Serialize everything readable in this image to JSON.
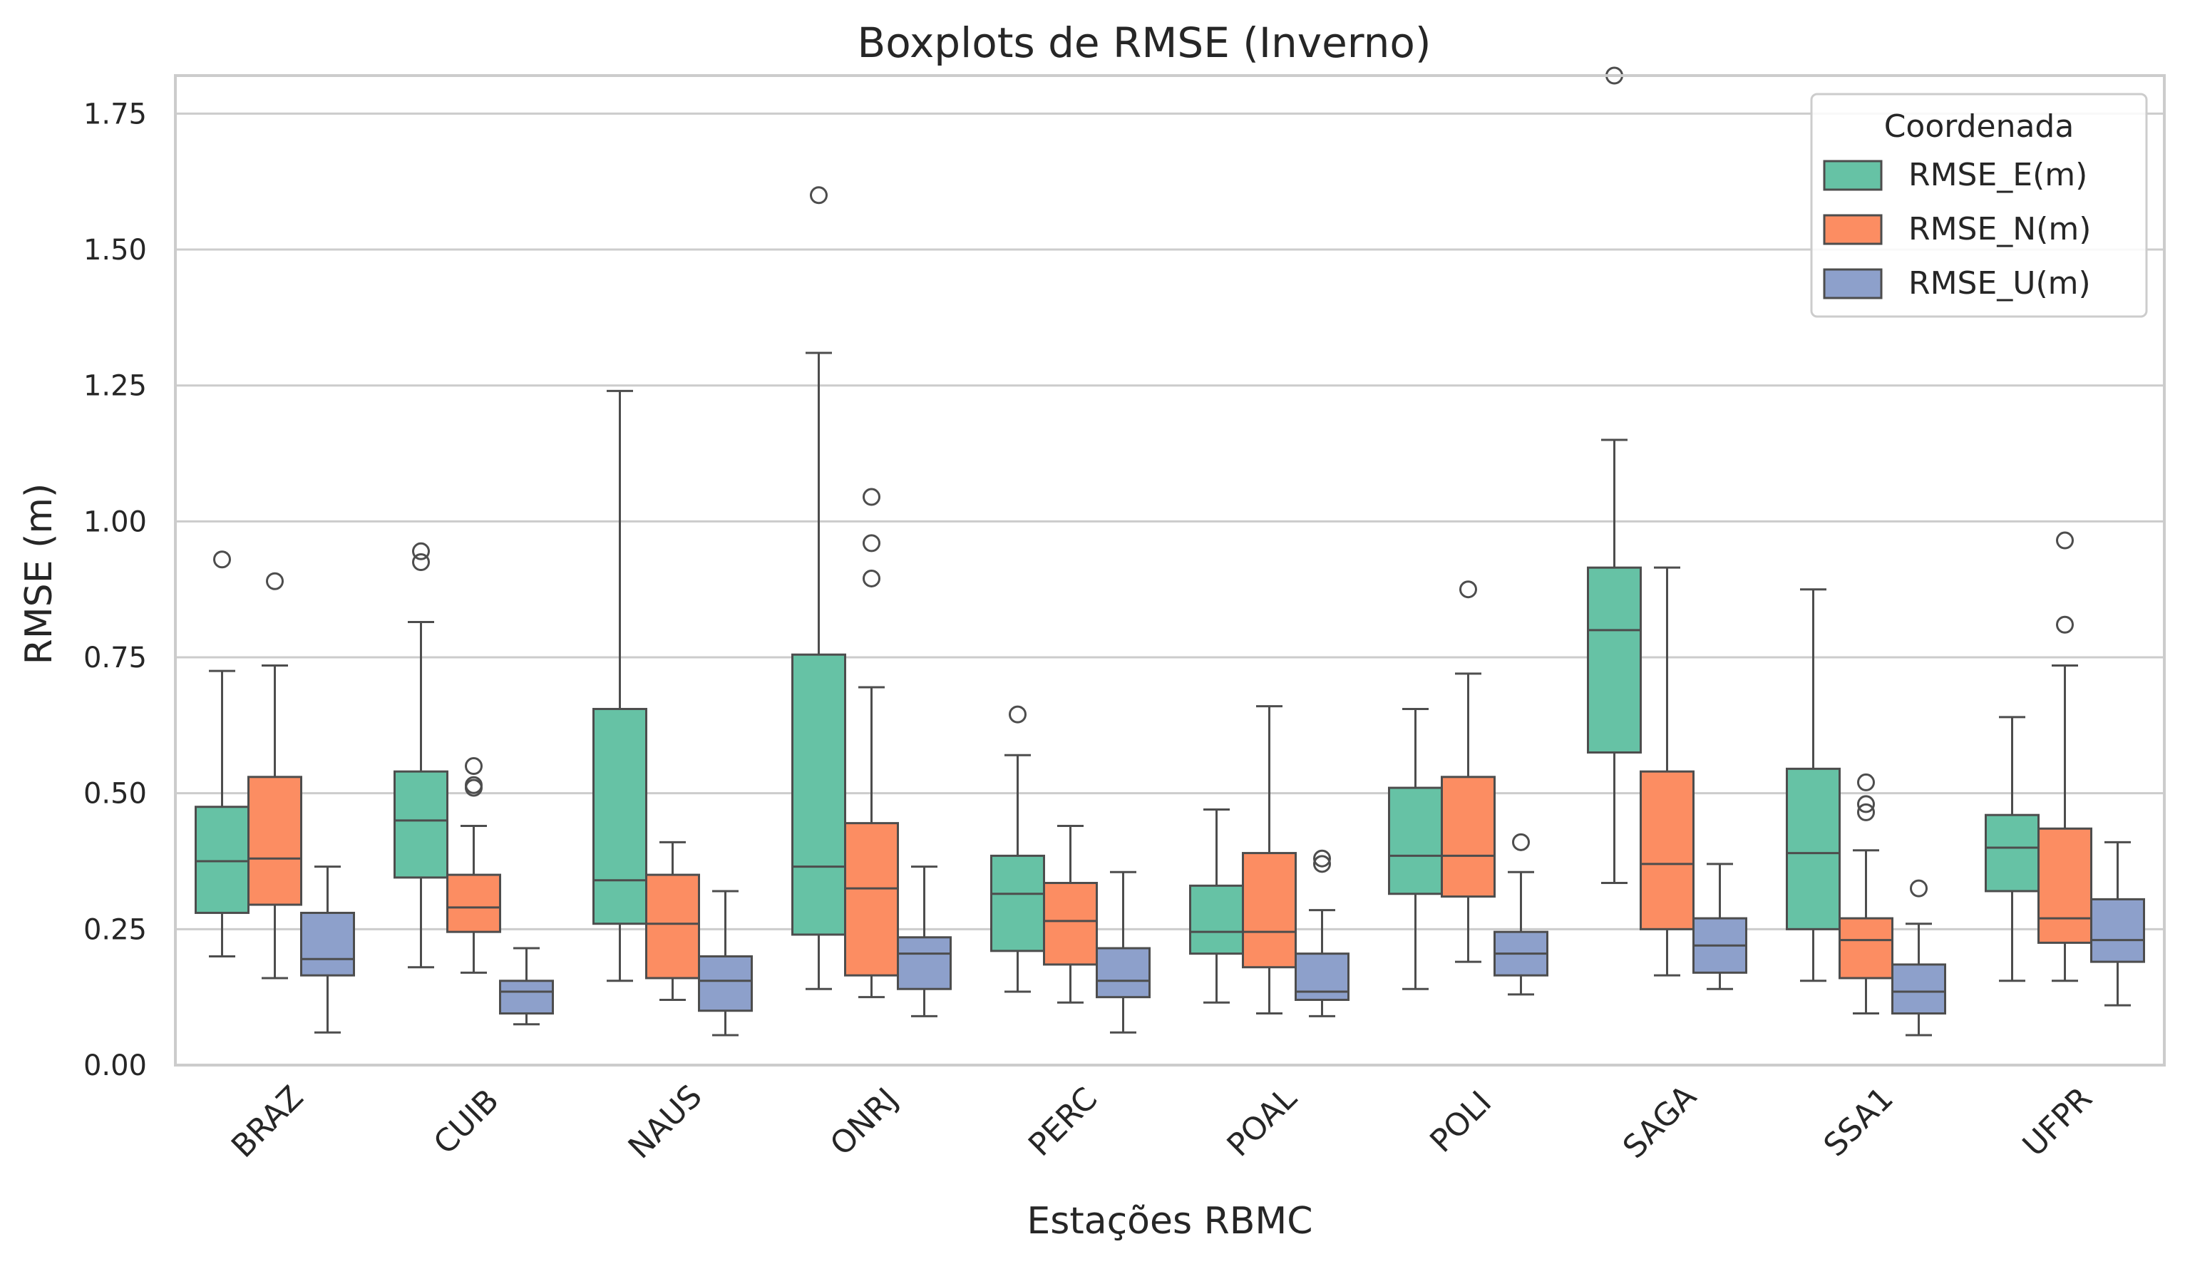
{
  "chart_data": {
    "type": "boxplot",
    "title": "Boxplots de RMSE (Inverno)",
    "xlabel": "Estações RBMC",
    "ylabel": "RMSE (m)",
    "ylim": [
      0,
      1.82
    ],
    "yticks": [
      0.0,
      0.25,
      0.5,
      0.75,
      1.0,
      1.25,
      1.5,
      1.75
    ],
    "ytick_labels": [
      "0.00",
      "0.25",
      "0.50",
      "0.75",
      "1.00",
      "1.25",
      "1.50",
      "1.75"
    ],
    "grid": true,
    "legend": {
      "title": "Coordenada",
      "position": "top-right"
    },
    "categories": [
      "BRAZ",
      "CUIB",
      "NAUS",
      "ONRJ",
      "PERC",
      "POAL",
      "POLI",
      "SAGA",
      "SSA1",
      "UFPR"
    ],
    "series": [
      {
        "name": "RMSE_E(m)",
        "color": "#66c2a5",
        "boxes": [
          {
            "whislo": 0.2,
            "q1": 0.28,
            "med": 0.375,
            "q3": 0.475,
            "whishi": 0.725,
            "fliers": [
              0.93
            ]
          },
          {
            "whislo": 0.18,
            "q1": 0.345,
            "med": 0.45,
            "q3": 0.54,
            "whishi": 0.815,
            "fliers": [
              0.925,
              0.945
            ]
          },
          {
            "whislo": 0.155,
            "q1": 0.26,
            "med": 0.34,
            "q3": 0.655,
            "whishi": 1.24,
            "fliers": []
          },
          {
            "whislo": 0.14,
            "q1": 0.24,
            "med": 0.365,
            "q3": 0.755,
            "whishi": 1.31,
            "fliers": [
              1.6
            ]
          },
          {
            "whislo": 0.135,
            "q1": 0.21,
            "med": 0.315,
            "q3": 0.385,
            "whishi": 0.57,
            "fliers": [
              0.645
            ]
          },
          {
            "whislo": 0.115,
            "q1": 0.205,
            "med": 0.245,
            "q3": 0.33,
            "whishi": 0.47,
            "fliers": []
          },
          {
            "whislo": 0.14,
            "q1": 0.315,
            "med": 0.385,
            "q3": 0.51,
            "whishi": 0.655,
            "fliers": []
          },
          {
            "whislo": 0.335,
            "q1": 0.575,
            "med": 0.8,
            "q3": 0.915,
            "whishi": 1.15,
            "fliers": [
              1.82
            ]
          },
          {
            "whislo": 0.155,
            "q1": 0.25,
            "med": 0.39,
            "q3": 0.545,
            "whishi": 0.875,
            "fliers": []
          },
          {
            "whislo": 0.155,
            "q1": 0.32,
            "med": 0.4,
            "q3": 0.46,
            "whishi": 0.64,
            "fliers": []
          }
        ]
      },
      {
        "name": "RMSE_N(m)",
        "color": "#fc8d62",
        "boxes": [
          {
            "whislo": 0.16,
            "q1": 0.295,
            "med": 0.38,
            "q3": 0.53,
            "whishi": 0.735,
            "fliers": [
              0.89
            ]
          },
          {
            "whislo": 0.17,
            "q1": 0.245,
            "med": 0.29,
            "q3": 0.35,
            "whishi": 0.44,
            "fliers": [
              0.51,
              0.515,
              0.55
            ]
          },
          {
            "whislo": 0.12,
            "q1": 0.16,
            "med": 0.26,
            "q3": 0.35,
            "whishi": 0.41,
            "fliers": []
          },
          {
            "whislo": 0.125,
            "q1": 0.165,
            "med": 0.325,
            "q3": 0.445,
            "whishi": 0.695,
            "fliers": [
              0.895,
              0.96,
              1.045
            ]
          },
          {
            "whislo": 0.115,
            "q1": 0.185,
            "med": 0.265,
            "q3": 0.335,
            "whishi": 0.44,
            "fliers": []
          },
          {
            "whislo": 0.095,
            "q1": 0.18,
            "med": 0.245,
            "q3": 0.39,
            "whishi": 0.66,
            "fliers": []
          },
          {
            "whislo": 0.19,
            "q1": 0.31,
            "med": 0.385,
            "q3": 0.53,
            "whishi": 0.72,
            "fliers": [
              0.875
            ]
          },
          {
            "whislo": 0.165,
            "q1": 0.25,
            "med": 0.37,
            "q3": 0.54,
            "whishi": 0.915,
            "fliers": []
          },
          {
            "whislo": 0.095,
            "q1": 0.16,
            "med": 0.23,
            "q3": 0.27,
            "whishi": 0.395,
            "fliers": [
              0.465,
              0.48,
              0.52
            ]
          },
          {
            "whislo": 0.155,
            "q1": 0.225,
            "med": 0.27,
            "q3": 0.435,
            "whishi": 0.735,
            "fliers": [
              0.81,
              0.965
            ]
          }
        ]
      },
      {
        "name": "RMSE_U(m)",
        "color": "#8da0cb",
        "boxes": [
          {
            "whislo": 0.06,
            "q1": 0.165,
            "med": 0.195,
            "q3": 0.28,
            "whishi": 0.365,
            "fliers": []
          },
          {
            "whislo": 0.075,
            "q1": 0.095,
            "med": 0.135,
            "q3": 0.155,
            "whishi": 0.215,
            "fliers": []
          },
          {
            "whislo": 0.055,
            "q1": 0.1,
            "med": 0.155,
            "q3": 0.2,
            "whishi": 0.32,
            "fliers": []
          },
          {
            "whislo": 0.09,
            "q1": 0.14,
            "med": 0.205,
            "q3": 0.235,
            "whishi": 0.365,
            "fliers": []
          },
          {
            "whislo": 0.06,
            "q1": 0.125,
            "med": 0.155,
            "q3": 0.215,
            "whishi": 0.355,
            "fliers": []
          },
          {
            "whislo": 0.09,
            "q1": 0.12,
            "med": 0.135,
            "q3": 0.205,
            "whishi": 0.285,
            "fliers": [
              0.37,
              0.38
            ]
          },
          {
            "whislo": 0.13,
            "q1": 0.165,
            "med": 0.205,
            "q3": 0.245,
            "whishi": 0.355,
            "fliers": [
              0.41
            ]
          },
          {
            "whislo": 0.14,
            "q1": 0.17,
            "med": 0.22,
            "q3": 0.27,
            "whishi": 0.37,
            "fliers": []
          },
          {
            "whislo": 0.055,
            "q1": 0.095,
            "med": 0.135,
            "q3": 0.185,
            "whishi": 0.26,
            "fliers": [
              0.325
            ]
          },
          {
            "whislo": 0.11,
            "q1": 0.19,
            "med": 0.23,
            "q3": 0.305,
            "whishi": 0.41,
            "fliers": []
          }
        ]
      }
    ]
  }
}
